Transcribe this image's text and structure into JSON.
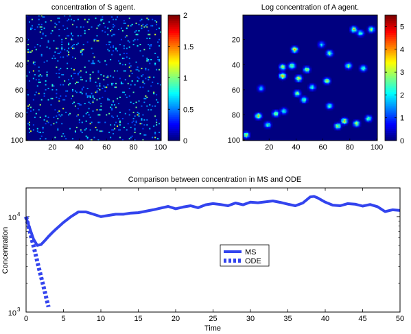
{
  "chart_data": [
    {
      "type": "heatmap",
      "title": "concentration of S agent.",
      "grid_size": [
        100,
        100
      ],
      "xticks": [
        20,
        40,
        60,
        80,
        100
      ],
      "yticks": [
        20,
        40,
        60,
        80,
        100
      ],
      "colorbar": {
        "range": [
          0,
          2
        ],
        "ticks": [
          "0",
          "0.5",
          "1",
          "1.5",
          "2"
        ]
      },
      "pattern": "sparse uniformly scattered single cells, mostly 0 (dark blue), sparse cells ~0.5–1 (cyan/green/yellow)"
    },
    {
      "type": "heatmap",
      "title": "Log concentration of A agent.",
      "grid_size": [
        100,
        100
      ],
      "xticks": [
        20,
        40,
        60,
        80,
        100
      ],
      "yticks": [
        20,
        40,
        60,
        80,
        100
      ],
      "colorbar": {
        "range": [
          0,
          5.5
        ],
        "ticks": [
          "0",
          "1",
          "2",
          "3",
          "4",
          "5"
        ]
      },
      "pattern": "background 0 (blue) with ~20 clustered hot spots up to ~4"
    },
    {
      "type": "line",
      "title": "Comparison between concentration in MS and ODE",
      "xlabel": "Time",
      "ylabel": "Concentration",
      "xlim": [
        0,
        50
      ],
      "ylim": [
        1000,
        20000
      ],
      "yscale": "log",
      "xticks": [
        "0",
        "5",
        "10",
        "15",
        "20",
        "25",
        "30",
        "35",
        "40",
        "45",
        "50"
      ],
      "yticks": [
        {
          "value": 1000,
          "base": "10",
          "exp": "3"
        },
        {
          "value": 10000,
          "base": "10",
          "exp": "4"
        }
      ],
      "legend": {
        "position": "center",
        "entries": [
          "MS",
          "ODE"
        ]
      },
      "series": [
        {
          "name": "MS",
          "style": "solid",
          "color": "#3344ee",
          "x": [
            0,
            0.5,
            1,
            1.5,
            2,
            2.5,
            3,
            3.5,
            4,
            5,
            6,
            7,
            8,
            9,
            10,
            11,
            12,
            13,
            14,
            15,
            16,
            17,
            18,
            19,
            20,
            21,
            22,
            23,
            24,
            25,
            26,
            27,
            28,
            29,
            30,
            31,
            32,
            33,
            34,
            35,
            36,
            37,
            38,
            38.5,
            39,
            40,
            41,
            42,
            43,
            44,
            45,
            46,
            47,
            48,
            49,
            50
          ],
          "y": [
            9800,
            7500,
            5800,
            5000,
            5100,
            5600,
            6200,
            6800,
            7400,
            8700,
            10000,
            11200,
            11200,
            10600,
            10000,
            10300,
            10600,
            10600,
            10900,
            11000,
            11400,
            11800,
            12300,
            12800,
            12100,
            12600,
            13000,
            12400,
            13300,
            13700,
            13400,
            13000,
            13900,
            13300,
            14200,
            14000,
            14300,
            14600,
            14100,
            13500,
            13000,
            13900,
            16100,
            16300,
            15700,
            14200,
            13200,
            13000,
            13700,
            13500,
            12900,
            13400,
            12700,
            11300,
            11800,
            11600
          ]
        },
        {
          "name": "ODE",
          "style": "dotted",
          "color": "#3344ee",
          "x": [
            0,
            0.5,
            1,
            1.5,
            2,
            2.5,
            3
          ],
          "y": [
            10000,
            7000,
            4900,
            3400,
            2350,
            1630,
            1130
          ]
        }
      ]
    }
  ]
}
